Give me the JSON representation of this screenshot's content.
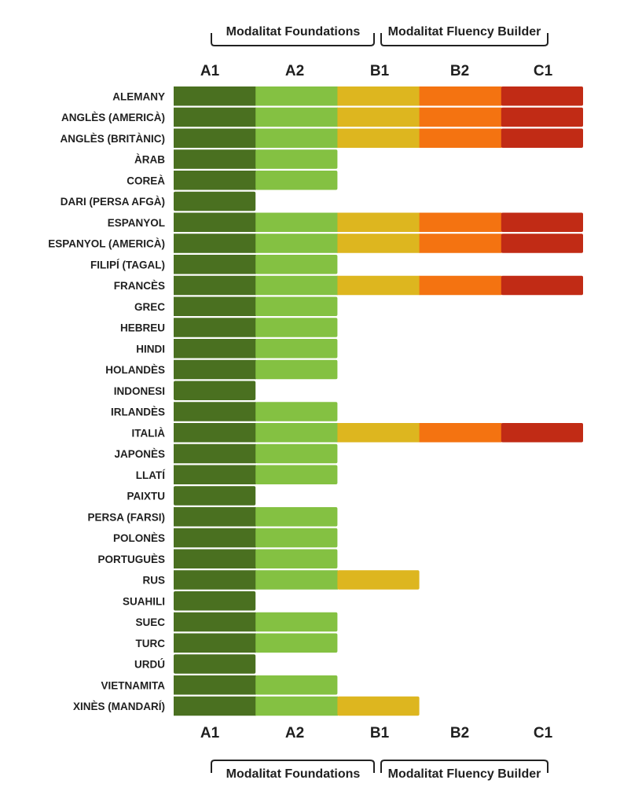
{
  "chart_data": {
    "type": "bar",
    "orientation": "horizontal",
    "stacked": true,
    "levels": [
      "A1",
      "A2",
      "B1",
      "B2",
      "C1"
    ],
    "level_colors": [
      "#4a7020",
      "#84c142",
      "#ddb61f",
      "#f47311",
      "#c12b15"
    ],
    "modalities": {
      "foundations": "Modalitat Foundations",
      "fluency": "Modalitat Fluency Builder"
    },
    "categories": [
      "ALEMANY",
      "ANGLÈS (AMERICÀ)",
      "ANGLÈS (BRITÀNIC)",
      "ÀRAB",
      "COREÀ",
      "DARI (PERSA AFGÀ)",
      "ESPANYOL",
      "ESPANYOL (AMERICÀ)",
      "FILIPÍ (TAGAL)",
      "FRANCÈS",
      "GREC",
      "HEBREU",
      "HINDI",
      "HOLANDÈS",
      "INDONESI",
      "IRLANDÈS",
      "ITALIÀ",
      "JAPONÈS",
      "LLATÍ",
      "PAIXTU",
      "PERSA (FARSI)",
      "POLONÈS",
      "PORTUGUÈS",
      "RUS",
      "SUAHILI",
      "SUEC",
      "TURC",
      "URDÚ",
      "VIETNAMITA",
      "XINÈS (MANDARÍ)"
    ],
    "values": [
      5,
      5,
      5,
      2,
      2,
      1,
      5,
      5,
      2,
      5,
      2,
      2,
      2,
      2,
      1,
      2,
      5,
      2,
      2,
      1,
      2,
      2,
      2,
      3,
      1,
      2,
      2,
      1,
      2,
      3
    ],
    "value_meaning": "number of CEFR levels reached (1=A1 … 5=C1)",
    "xlim": [
      0,
      5
    ],
    "grid": false
  }
}
